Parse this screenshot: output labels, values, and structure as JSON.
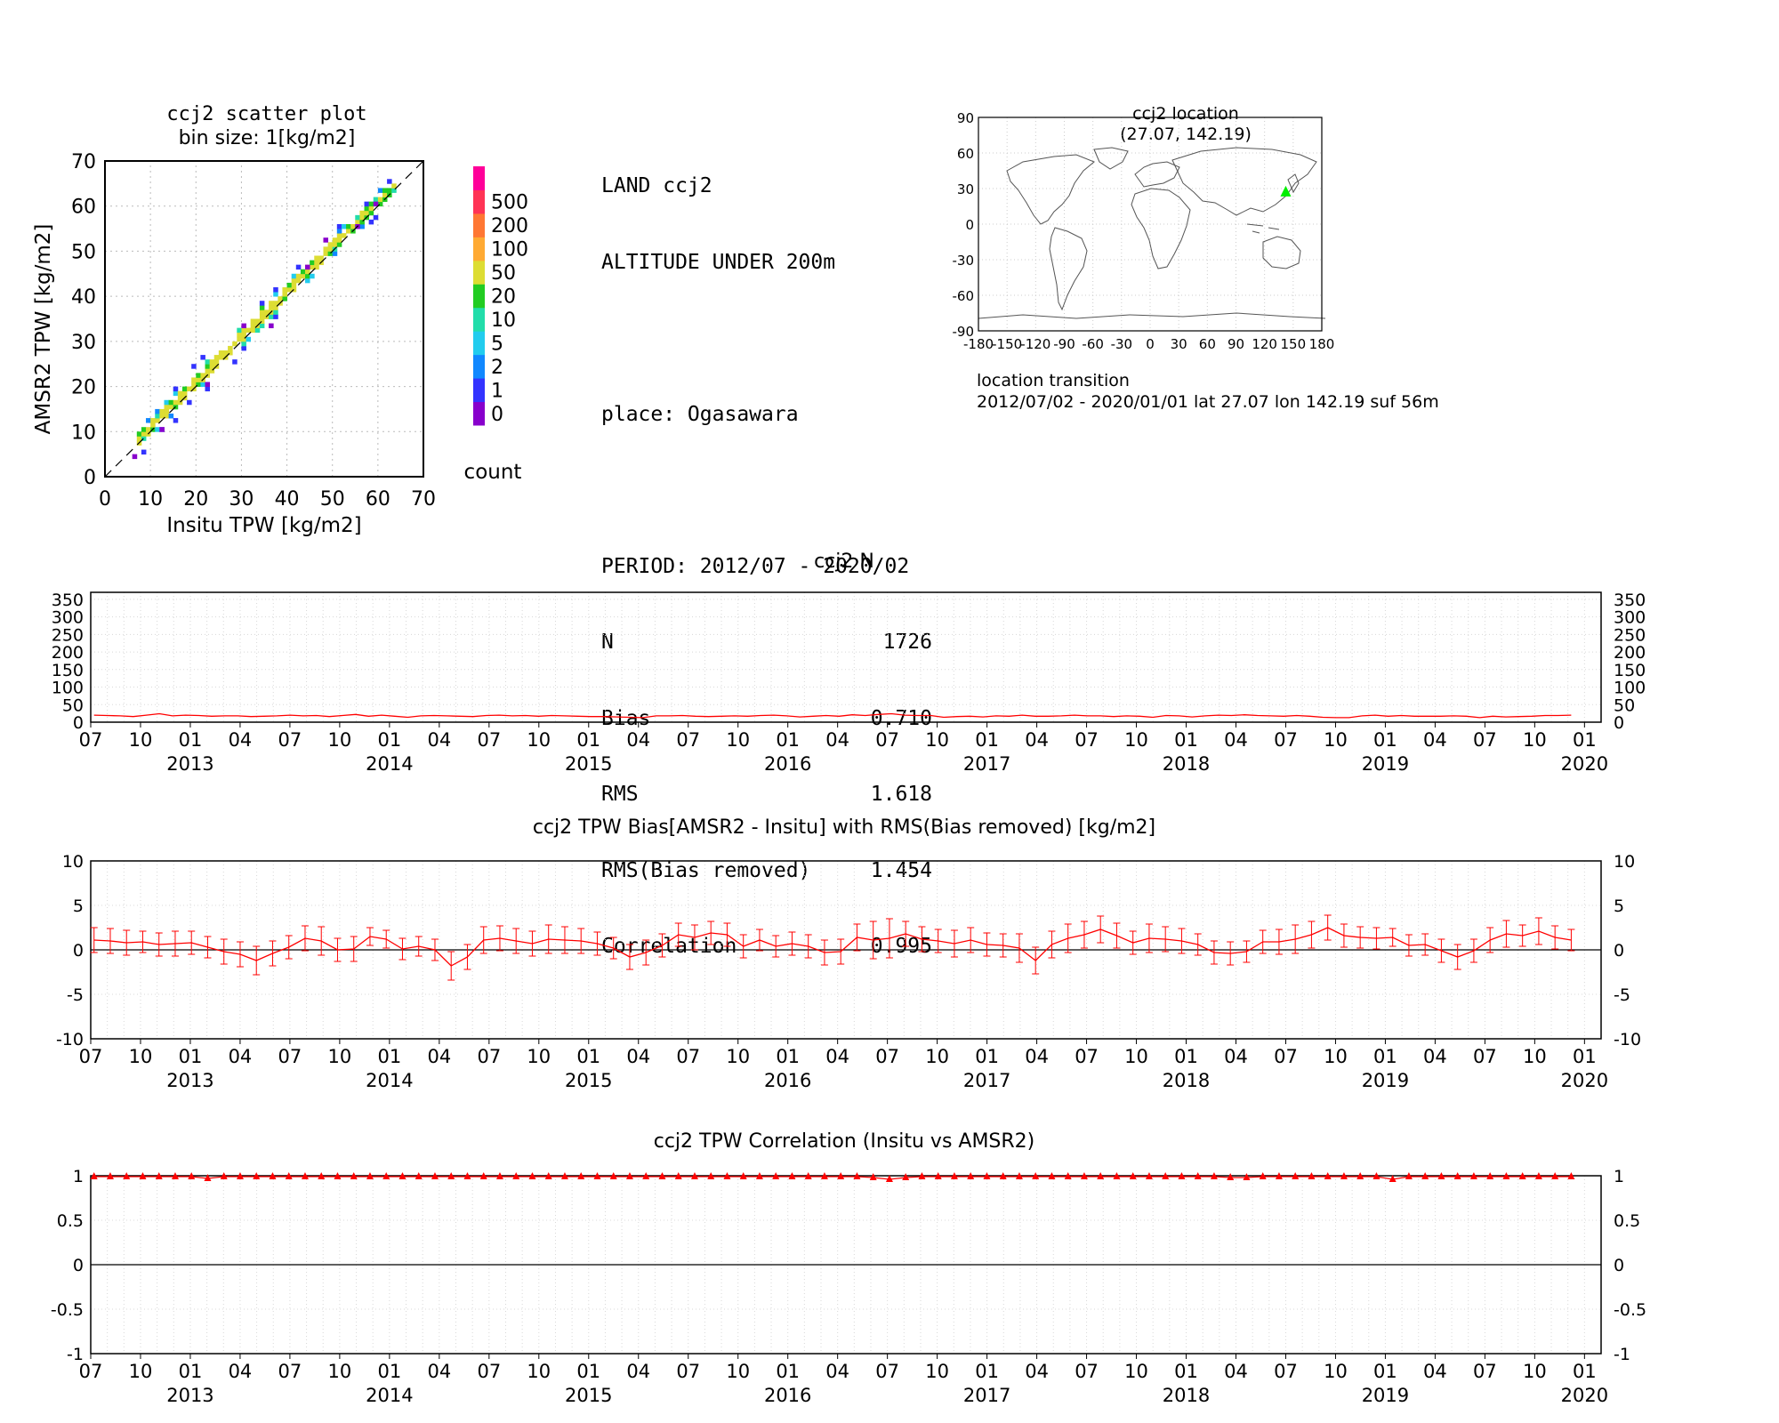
{
  "scatter": {
    "title_line1": "ccj2 scatter plot",
    "title_line2": "bin size: 1[kg/m2]",
    "xlabel": "Insitu TPW [kg/m2]",
    "ylabel": "AMSR2 TPW [kg/m2]",
    "ticks": [
      "0",
      "10",
      "20",
      "30",
      "40",
      "50",
      "60",
      "70"
    ],
    "colorbar_labels": [
      "0",
      "1",
      "2",
      "5",
      "10",
      "20",
      "50",
      "100",
      "200",
      "500"
    ],
    "colorbar_colors": [
      "#8800cc",
      "#3333ff",
      "#1188ff",
      "#22ccee",
      "#22ddaa",
      "#22cc22",
      "#dddd33",
      "#ffaa33",
      "#ff7733",
      "#ff3355",
      "#ff0099"
    ],
    "colorbar_title": "count"
  },
  "stats": {
    "line1": "LAND ccj2",
    "line2": "ALTITUDE UNDER 200m",
    "place": "place: Ogasawara",
    "period": "PERIOD: 2012/07 - 2020/02",
    "rows": [
      {
        "label": "N",
        "value": "1726"
      },
      {
        "label": "Bias",
        "value": "0.710"
      },
      {
        "label": "RMS",
        "value": "1.618"
      },
      {
        "label": "RMS(Bias removed)",
        "value": "1.454"
      },
      {
        "label": "Correlation",
        "value": "0.995"
      }
    ]
  },
  "map": {
    "title_line1": "ccj2 location",
    "title_line2": "(27.07, 142.19)",
    "lat": 27.07,
    "lon": 142.19,
    "yticks": [
      "90",
      "60",
      "30",
      "0",
      "-30",
      "-60",
      "-90"
    ],
    "xticks": [
      "-180",
      "-150",
      "-120",
      "-90",
      "-60",
      "-30",
      "0",
      "30",
      "60",
      "90",
      "120",
      "150",
      "180"
    ],
    "marker_color": "#00ee00",
    "transition_title": "location transition",
    "transition_text": "2012/07/02 - 2020/01/01 lat 27.07 lon 142.19 suf 56m"
  },
  "time_axis": {
    "month_labels": [
      "07",
      "10",
      "01",
      "04",
      "07",
      "10",
      "01",
      "04",
      "07",
      "10",
      "01",
      "04",
      "07",
      "10",
      "01",
      "04",
      "07",
      "10",
      "01",
      "04",
      "07",
      "10",
      "01",
      "04",
      "07",
      "10",
      "01",
      "04",
      "07",
      "10",
      "01"
    ],
    "year_labels": [
      "2013",
      "2014",
      "2015",
      "2016",
      "2017",
      "2018",
      "2019",
      "2020"
    ]
  },
  "chart_data": [
    {
      "type": "heatmap",
      "title": "ccj2 scatter plot",
      "subtitle": "bin size: 1[kg/m2]",
      "xlabel": "Insitu TPW [kg/m2]",
      "ylabel": "AMSR2 TPW [kg/m2]",
      "xlim": [
        0,
        70
      ],
      "ylim": [
        0,
        70
      ],
      "note_fit": "points cluster along y = x + 0.71",
      "colorbar_levels": [
        0,
        1,
        2,
        5,
        10,
        20,
        50,
        100,
        200,
        500
      ]
    },
    {
      "type": "line",
      "title": "ccj2 N",
      "ylim": [
        0,
        370
      ],
      "yticks": [
        "350",
        "300",
        "250",
        "200",
        "150",
        "100",
        "50",
        "0"
      ],
      "x_start": "2012/07",
      "x_end": "2020/01",
      "series": [
        {
          "values": [
            20,
            19,
            18,
            16,
            20,
            24,
            18,
            20,
            19,
            17,
            18,
            18,
            16,
            17,
            18,
            20,
            18,
            19,
            16,
            19,
            22,
            17,
            20,
            17,
            14,
            18,
            19,
            18,
            17,
            16,
            19,
            20,
            18,
            19,
            17,
            19,
            18,
            17,
            16,
            16,
            15,
            14,
            13,
            18,
            18,
            19,
            17,
            16,
            17,
            18,
            17,
            19,
            20,
            18,
            15,
            17,
            19,
            17,
            21,
            19,
            22,
            24,
            20,
            19,
            19,
            14,
            16,
            17,
            15,
            18,
            17,
            20,
            17,
            17,
            18,
            20,
            18,
            18,
            16,
            18,
            17,
            14,
            19,
            18,
            15,
            18,
            20,
            19,
            21,
            19,
            18,
            17,
            19,
            17,
            14,
            13,
            13,
            18,
            20,
            17,
            19,
            17,
            17,
            17,
            18,
            17,
            13,
            17,
            15,
            16,
            17,
            19,
            19,
            20
          ]
        }
      ]
    },
    {
      "type": "line",
      "title": "ccj2 TPW Bias[AMSR2 - Insitu] with RMS(Bias removed) [kg/m2]",
      "ylim": [
        -10,
        10
      ],
      "yticks": [
        "10",
        "5",
        "0",
        "-5",
        "-10"
      ],
      "x_start": "2012/07",
      "x_end": "2019/12",
      "series": [
        {
          "values": [
            1.1,
            1.0,
            0.8,
            0.9,
            0.6,
            0.7,
            0.8,
            0.3,
            -0.2,
            -0.5,
            -1.2,
            -0.4,
            0.3,
            1.3,
            1.0,
            0.0,
            0.1,
            1.5,
            1.2,
            0.1,
            0.4,
            0.0,
            -1.8,
            -0.8,
            1.1,
            1.3,
            1.0,
            0.7,
            1.2,
            1.1,
            1.0,
            0.7,
            0.2,
            -0.8,
            -0.3,
            0.5,
            1.7,
            1.4,
            1.9,
            1.7,
            0.4,
            1.1,
            0.4,
            0.7,
            0.4,
            -0.3,
            -0.2,
            1.4,
            1.1,
            1.3,
            1.8,
            1.2,
            1.0,
            0.7,
            1.1,
            0.6,
            0.5,
            0.2,
            -1.2,
            0.6,
            1.3,
            1.7,
            2.3,
            1.6,
            0.8,
            1.3,
            1.2,
            1.0,
            0.6,
            -0.3,
            -0.4,
            -0.2,
            0.9,
            0.9,
            1.2,
            1.7,
            2.5,
            1.6,
            1.4,
            1.3,
            1.4,
            0.5,
            0.6,
            -0.1,
            -0.8,
            -0.1,
            1.1,
            1.8,
            1.6,
            2.1,
            1.4,
            1.1
          ]
        },
        {
          "values": [
            1.4,
            1.4,
            1.4,
            1.2,
            1.3,
            1.4,
            1.3,
            1.2,
            1.4,
            1.4,
            1.6,
            1.4,
            1.3,
            1.4,
            1.6,
            1.3,
            1.4,
            1.0,
            1.0,
            1.2,
            1.1,
            1.2,
            1.6,
            1.4,
            1.5,
            1.4,
            1.4,
            1.4,
            1.6,
            1.5,
            1.4,
            1.3,
            1.2,
            1.4,
            1.4,
            1.3,
            1.3,
            1.4,
            1.3,
            1.3,
            1.3,
            1.2,
            1.2,
            1.3,
            1.3,
            1.4,
            1.4,
            1.5,
            2.1,
            2.2,
            1.4,
            1.4,
            1.3,
            1.5,
            1.4,
            1.3,
            1.3,
            1.6,
            1.5,
            1.5,
            1.6,
            1.5,
            1.5,
            1.4,
            1.3,
            1.6,
            1.4,
            1.4,
            1.2,
            1.3,
            1.3,
            1.2,
            1.3,
            1.4,
            1.6,
            1.5,
            1.4,
            1.3,
            1.2,
            1.2,
            1.0,
            1.2,
            1.2,
            1.3,
            1.4,
            1.3,
            1.4,
            1.5,
            1.2,
            1.5,
            1.3,
            1.2
          ]
        }
      ]
    },
    {
      "type": "line",
      "title": "ccj2 TPW Correlation (Insitu vs AMSR2)",
      "ylim": [
        -1,
        1
      ],
      "yticks": [
        "1",
        "0.5",
        "0",
        "-0.5",
        "-1"
      ],
      "x_start": "2012/07",
      "x_end": "2019/12",
      "series": [
        {
          "values": [
            0.99,
            0.99,
            0.99,
            0.99,
            0.99,
            0.99,
            0.99,
            0.97,
            0.99,
            0.99,
            0.99,
            0.99,
            0.99,
            0.99,
            0.99,
            0.99,
            0.99,
            0.99,
            0.99,
            0.99,
            0.99,
            0.99,
            0.99,
            0.99,
            0.99,
            0.99,
            0.99,
            0.99,
            0.99,
            0.99,
            0.99,
            0.99,
            0.99,
            0.99,
            0.99,
            0.99,
            0.99,
            0.99,
            0.99,
            0.99,
            0.99,
            0.99,
            0.99,
            0.99,
            0.99,
            0.99,
            0.99,
            0.99,
            0.98,
            0.96,
            0.98,
            0.99,
            0.99,
            0.99,
            0.99,
            0.99,
            0.99,
            0.99,
            0.99,
            0.99,
            0.99,
            0.99,
            0.99,
            0.99,
            0.99,
            0.99,
            0.99,
            0.99,
            0.99,
            0.99,
            0.98,
            0.98,
            0.99,
            0.99,
            0.99,
            0.99,
            0.99,
            0.99,
            0.99,
            0.99,
            0.96,
            0.99,
            0.99,
            0.99,
            0.99,
            0.99,
            0.99,
            0.99,
            0.99,
            0.99,
            0.99,
            0.99
          ]
        }
      ]
    }
  ]
}
